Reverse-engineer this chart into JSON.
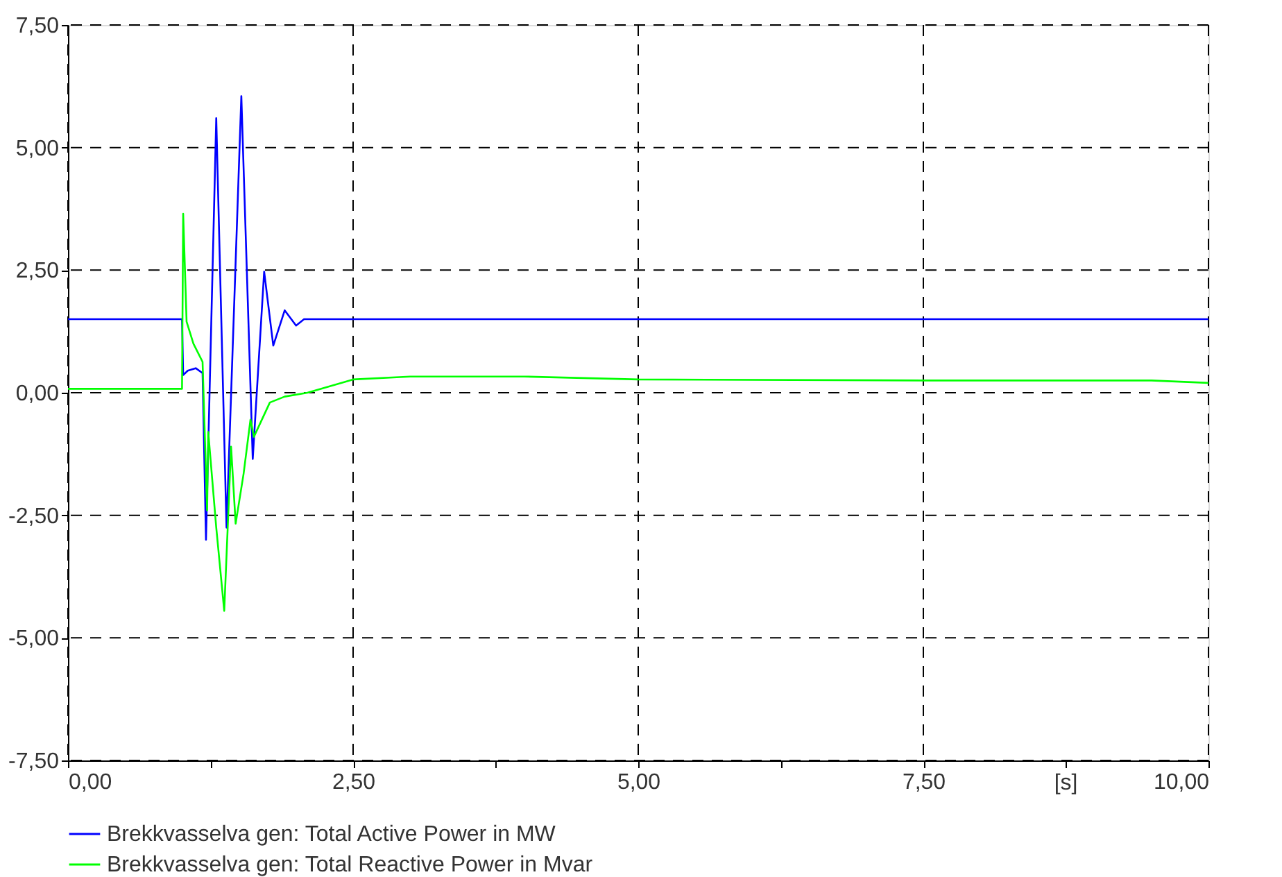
{
  "chart_data": {
    "type": "line",
    "xlabel": "[s]",
    "xlim": [
      0,
      10
    ],
    "ylim": [
      -7.5,
      7.5
    ],
    "xticks": [
      {
        "value": 0,
        "label": "0,00"
      },
      {
        "value": 1.25,
        "label": null
      },
      {
        "value": 2.5,
        "label": "2,50"
      },
      {
        "value": 3.75,
        "label": null
      },
      {
        "value": 5,
        "label": "5,00"
      },
      {
        "value": 6.25,
        "label": null
      },
      {
        "value": 7.5,
        "label": "7,50"
      },
      {
        "value": 8.75,
        "label": null
      },
      {
        "value": 10,
        "label": "10,00"
      }
    ],
    "yticks": [
      {
        "value": -7.5,
        "label": "-7,50"
      },
      {
        "value": -5,
        "label": "-5,00"
      },
      {
        "value": -2.5,
        "label": "-2,50"
      },
      {
        "value": 0,
        "label": "0,00"
      },
      {
        "value": 2.5,
        "label": "2,50"
      },
      {
        "value": 5,
        "label": "5,00"
      },
      {
        "value": 7.5,
        "label": "7,50"
      }
    ],
    "grid": true,
    "legend": "bottom",
    "line_style": "solid",
    "marker": "none",
    "series": [
      {
        "name": "Brekkvasselva gen: Total Active Power in MW",
        "color": "#0000ff",
        "x": [
          0,
          1.0,
          1.01,
          1.05,
          1.12,
          1.18,
          1.21,
          1.3,
          1.39,
          1.52,
          1.62,
          1.72,
          1.8,
          1.9,
          2.0,
          2.07,
          2.5,
          5,
          7.5,
          10
        ],
        "values": [
          1.5,
          1.5,
          0.36,
          0.45,
          0.5,
          0.4,
          -3.0,
          5.6,
          -2.75,
          6.05,
          -1.35,
          2.47,
          0.96,
          1.68,
          1.37,
          1.5,
          1.5,
          1.5,
          1.5,
          1.5
        ]
      },
      {
        "name": "Brekkvasselva gen: Total Reactive Power in Mvar",
        "color": "#00ff00",
        "x": [
          0,
          1.0,
          1.01,
          1.04,
          1.1,
          1.18,
          1.22,
          1.23,
          1.3,
          1.37,
          1.43,
          1.47,
          1.54,
          1.6,
          1.63,
          1.77,
          1.9,
          2.1,
          2.5,
          3.0,
          4.0,
          5.0,
          7.5,
          9.5,
          10
        ],
        "values": [
          0.08,
          0.08,
          3.65,
          1.45,
          1.0,
          0.63,
          -2.4,
          -0.8,
          -2.75,
          -4.45,
          -1.1,
          -2.67,
          -1.65,
          -0.55,
          -0.9,
          -0.2,
          -0.08,
          0.0,
          0.27,
          0.33,
          0.33,
          0.27,
          0.25,
          0.25,
          0.2
        ]
      }
    ]
  }
}
